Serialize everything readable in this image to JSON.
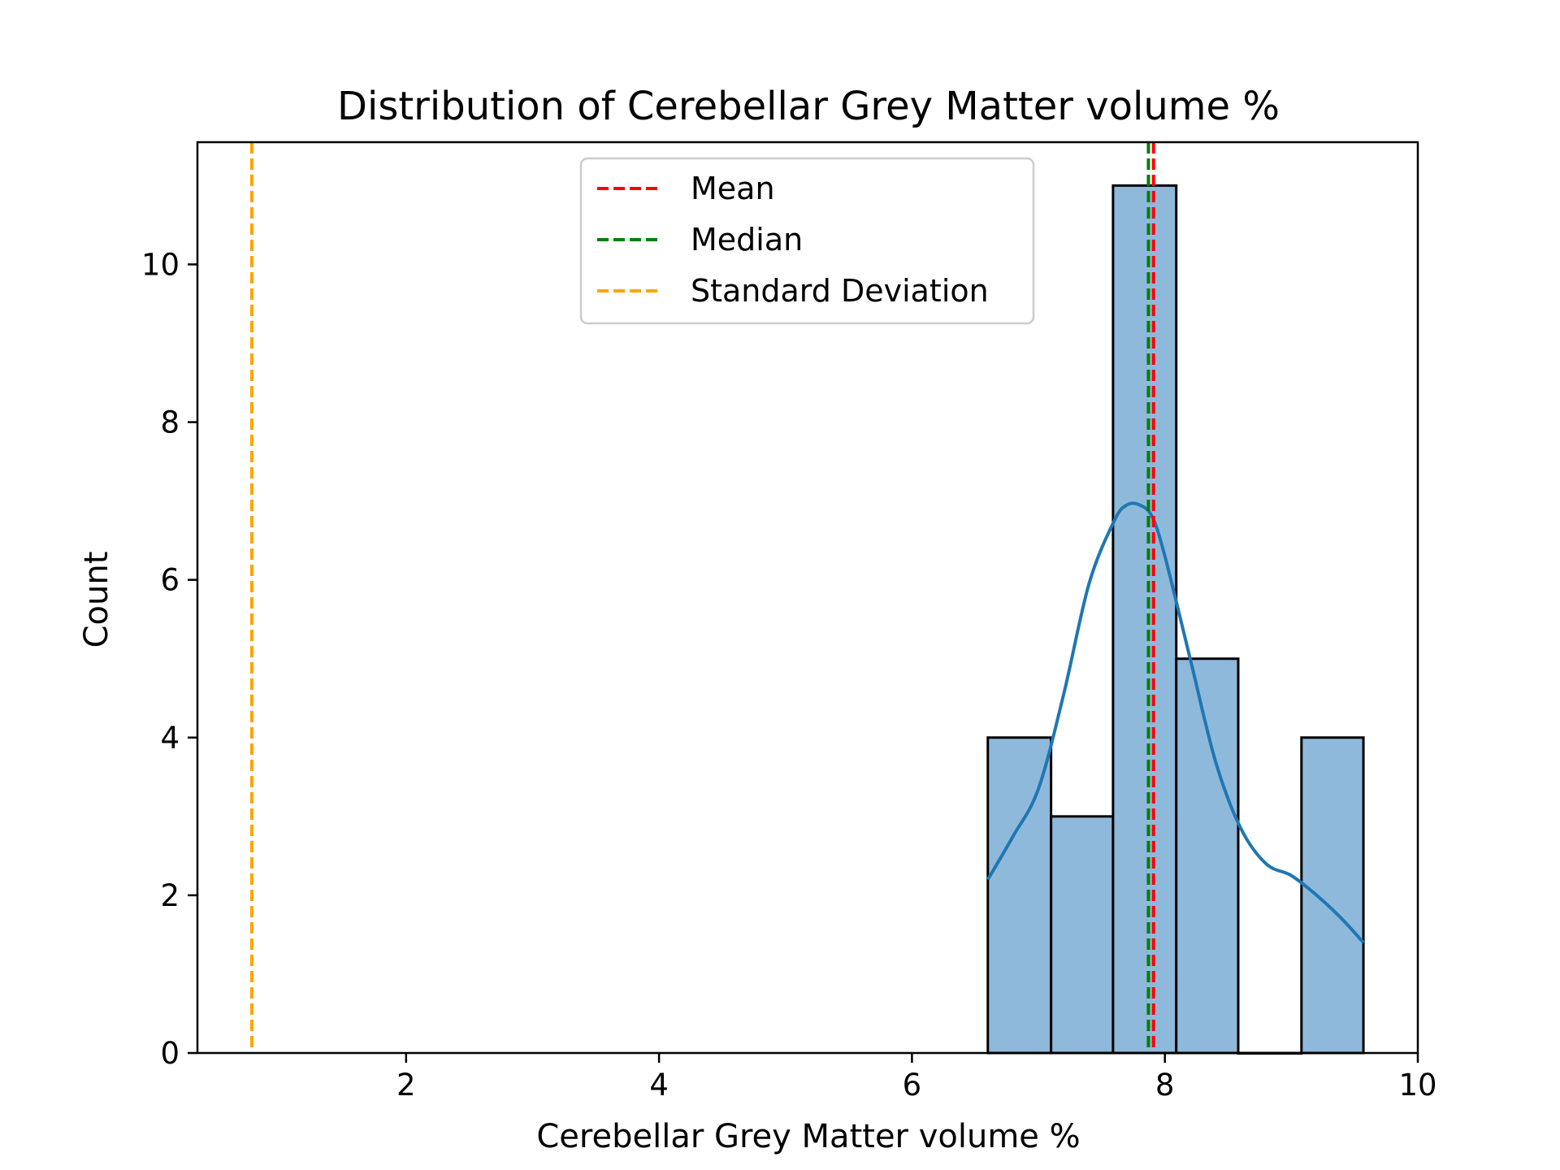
{
  "chart_data": {
    "type": "bar",
    "title": "Distribution of Cerebellar Grey Matter volume %",
    "xlabel": "Cerebellar Grey Matter volume %",
    "ylabel": "Count",
    "xlim": [
      0.35,
      10.0
    ],
    "ylim": [
      0,
      11.55
    ],
    "xticks": [
      2,
      4,
      6,
      8,
      10
    ],
    "yticks": [
      0,
      2,
      4,
      6,
      8,
      10
    ],
    "bins": [
      {
        "x0": 6.6,
        "x1": 7.1,
        "count": 4
      },
      {
        "x0": 7.1,
        "x1": 7.59,
        "count": 3
      },
      {
        "x0": 7.59,
        "x1": 8.09,
        "count": 11
      },
      {
        "x0": 8.09,
        "x1": 8.58,
        "count": 5
      },
      {
        "x0": 8.58,
        "x1": 9.08,
        "count": 0
      },
      {
        "x0": 9.08,
        "x1": 9.57,
        "count": 4
      }
    ],
    "kde": {
      "x": [
        6.6,
        6.8,
        7.0,
        7.2,
        7.4,
        7.6,
        7.7,
        7.8,
        7.9,
        8.0,
        8.2,
        8.4,
        8.6,
        8.8,
        9.0,
        9.2,
        9.4,
        9.57
      ],
      "y": [
        2.2,
        2.75,
        3.35,
        4.55,
        5.95,
        6.75,
        6.95,
        6.95,
        6.8,
        6.3,
        5.0,
        3.7,
        2.85,
        2.4,
        2.25,
        2.0,
        1.7,
        1.4
      ],
      "color": "#1f77b4"
    },
    "lines": [
      {
        "name": "Mean",
        "x": 7.91,
        "color": "#ff0000"
      },
      {
        "name": "Median",
        "x": 7.87,
        "color": "#008000"
      },
      {
        "name": "Standard Deviation",
        "x": 0.78,
        "color": "#ffa500"
      }
    ],
    "bar_fill": "#8fb9db",
    "bar_edge": "#000000",
    "grid": false,
    "legend_position": "top-center"
  }
}
